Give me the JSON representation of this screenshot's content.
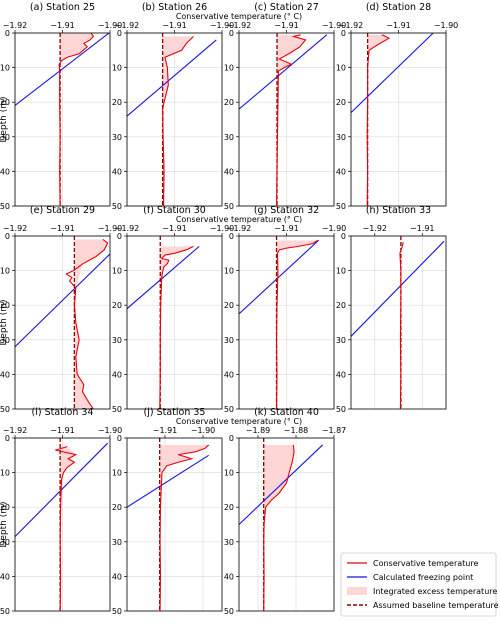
{
  "chart_data": {
    "type": "line",
    "ylabel": "Depth (m)",
    "xlabel": "Conservative temperature (° C)",
    "ylim": [
      50,
      0
    ],
    "y_ticks": [
      0,
      10,
      20,
      30,
      40,
      50
    ],
    "grid": true,
    "legend_position": "bottom-right",
    "legend": [
      {
        "label": "Conservative temperature",
        "style": "line",
        "color": "#e8000b"
      },
      {
        "label": "Calculated freezing point",
        "style": "line",
        "color": "#1414e0"
      },
      {
        "label": "Integrated excess temperature ( Δ T)",
        "style": "fill",
        "color": "#ffd6d6"
      },
      {
        "label": "Assumed baseline temperature (T_b)",
        "style": "dashed",
        "color": "#8b0000"
      }
    ],
    "colors": {
      "temperature": "#e8000b",
      "freezing": "#1414e0",
      "excess_fill": "#ffd6d6",
      "baseline": "#8b0000",
      "grid": "#dddddd"
    },
    "panels": [
      {
        "title": "(a)  Station 25",
        "xlim": [
          -1.92,
          -1.9
        ],
        "xticks": [
          -1.92,
          -1.91,
          -1.9
        ],
        "xticklabels": [
          "−1.92",
          "−1.91",
          "−1.90"
        ],
        "baseline": -1.9105,
        "freezing": [
          [
            -1.9002,
            0
          ],
          [
            -1.921,
            22
          ]
        ],
        "temperature": [
          [
            -1.904,
            0
          ],
          [
            -1.9035,
            1
          ],
          [
            -1.9042,
            2
          ],
          [
            -1.9055,
            3
          ],
          [
            -1.9048,
            4
          ],
          [
            -1.9065,
            6
          ],
          [
            -1.909,
            7
          ],
          [
            -1.9102,
            8
          ],
          [
            -1.9107,
            9
          ],
          [
            -1.9106,
            11
          ],
          [
            -1.9106,
            20
          ],
          [
            -1.9105,
            30
          ],
          [
            -1.9106,
            40
          ],
          [
            -1.9105,
            50
          ]
        ]
      },
      {
        "title": "(b)  Station 26",
        "xlim": [
          -1.92,
          -1.9
        ],
        "xticks": [
          -1.92,
          -1.91,
          -1.9
        ],
        "xticklabels": [
          "−1.92",
          "−1.91",
          "−1.90"
        ],
        "baseline": -1.9125,
        "freezing": [
          [
            -1.9012,
            2
          ],
          [
            -1.92,
            24
          ]
        ],
        "temperature": [
          [
            -1.906,
            1
          ],
          [
            -1.9075,
            3
          ],
          [
            -1.9085,
            5
          ],
          [
            -1.912,
            7
          ],
          [
            -1.9115,
            10
          ],
          [
            -1.9113,
            15
          ],
          [
            -1.9122,
            20
          ],
          [
            -1.9125,
            22
          ],
          [
            -1.9124,
            30
          ],
          [
            -1.9122,
            40
          ],
          [
            -1.9123,
            50
          ]
        ]
      },
      {
        "title": "(c)  Station 27",
        "xlim": [
          -1.92,
          -1.9
        ],
        "xticks": [
          -1.92,
          -1.91,
          -1.9
        ],
        "xticklabels": [
          "−1.92",
          "−1.91",
          "−1.90"
        ],
        "baseline": -1.912,
        "freezing": [
          [
            -1.9015,
            0.5
          ],
          [
            -1.92,
            22
          ]
        ],
        "temperature": [
          [
            -1.907,
            0.5
          ],
          [
            -1.9085,
            1
          ],
          [
            -1.906,
            2
          ],
          [
            -1.9072,
            4
          ],
          [
            -1.9095,
            6
          ],
          [
            -1.9115,
            7.5
          ],
          [
            -1.909,
            9
          ],
          [
            -1.9105,
            10
          ],
          [
            -1.9117,
            11
          ],
          [
            -1.9118,
            20
          ],
          [
            -1.9119,
            30
          ],
          [
            -1.912,
            40
          ],
          [
            -1.9121,
            50
          ]
        ]
      },
      {
        "title": "(d)  Station 28",
        "xlim": [
          -1.92,
          -1.9
        ],
        "xticks": [
          -1.92,
          -1.91,
          -1.9
        ],
        "xticklabels": [
          "−1.92",
          "−1.91",
          "−1.90"
        ],
        "baseline": -1.9165,
        "freezing": [
          [
            -1.9027,
            0
          ],
          [
            -1.92,
            23
          ]
        ],
        "temperature": [
          [
            -1.9135,
            0.5
          ],
          [
            -1.912,
            1.5
          ],
          [
            -1.9145,
            3.5
          ],
          [
            -1.9162,
            5
          ],
          [
            -1.9165,
            10
          ],
          [
            -1.9165,
            20
          ],
          [
            -1.9166,
            30
          ],
          [
            -1.9165,
            40
          ],
          [
            -1.9166,
            50
          ]
        ]
      },
      {
        "title": "(e)  Station 29",
        "xlim": [
          -1.92,
          -1.9
        ],
        "xticks": [
          -1.92,
          -1.91,
          -1.9
        ],
        "xticklabels": [
          "−1.92",
          "−1.91",
          "−1.90"
        ],
        "baseline": -1.9075,
        "freezing": [
          [
            -1.9,
            5.2
          ],
          [
            -1.92,
            32
          ]
        ],
        "temperature": [
          [
            -1.9015,
            1
          ],
          [
            -1.9005,
            2
          ],
          [
            -1.9012,
            4
          ],
          [
            -1.903,
            6
          ],
          [
            -1.9057,
            8
          ],
          [
            -1.9077,
            10
          ],
          [
            -1.9092,
            11
          ],
          [
            -1.908,
            12
          ],
          [
            -1.9085,
            13
          ],
          [
            -1.9072,
            15
          ],
          [
            -1.9075,
            20
          ],
          [
            -1.9072,
            25
          ],
          [
            -1.9065,
            30
          ],
          [
            -1.9072,
            35
          ],
          [
            -1.9069,
            40
          ],
          [
            -1.9055,
            43
          ],
          [
            -1.9058,
            45
          ],
          [
            -1.9045,
            48
          ],
          [
            -1.9035,
            50
          ]
        ]
      },
      {
        "title": "(f)  Station 30",
        "xlim": [
          -1.92,
          -1.9
        ],
        "xticks": [
          -1.92,
          -1.91,
          -1.9
        ],
        "xticklabels": [
          "−1.92",
          "−1.91",
          "−1.90"
        ],
        "baseline": -1.913,
        "freezing": [
          [
            -1.9048,
            3
          ],
          [
            -1.92,
            21
          ]
        ],
        "temperature": [
          [
            -1.906,
            3
          ],
          [
            -1.9075,
            4
          ],
          [
            -1.91,
            5
          ],
          [
            -1.912,
            5.5
          ],
          [
            -1.9127,
            6.5
          ],
          [
            -1.9112,
            7
          ],
          [
            -1.9115,
            8
          ],
          [
            -1.9123,
            9
          ],
          [
            -1.9127,
            12
          ],
          [
            -1.9129,
            20
          ],
          [
            -1.913,
            30
          ],
          [
            -1.913,
            40
          ],
          [
            -1.9131,
            50
          ]
        ]
      },
      {
        "title": "(g)  Station 32",
        "xlim": [
          -1.92,
          -1.9
        ],
        "xticks": [
          -1.92,
          -1.91,
          -1.9
        ],
        "xticklabels": [
          "−1.92",
          "−1.91",
          "−1.90"
        ],
        "baseline": -1.9121,
        "freezing": [
          [
            -1.9032,
            1.2
          ],
          [
            -1.92,
            22.5
          ]
        ],
        "temperature": [
          [
            -1.9035,
            1.3
          ],
          [
            -1.9045,
            2.2
          ],
          [
            -1.9075,
            3
          ],
          [
            -1.91,
            3.5
          ],
          [
            -1.9115,
            4
          ],
          [
            -1.9119,
            5
          ],
          [
            -1.9118,
            10
          ],
          [
            -1.912,
            20
          ],
          [
            -1.9121,
            30
          ],
          [
            -1.912,
            40
          ],
          [
            -1.9121,
            50
          ]
        ]
      },
      {
        "title": "(h)  Station 33",
        "xlim": [
          -1.925,
          -1.905
        ],
        "xticks": [
          -1.92,
          -1.91
        ],
        "xticklabels": [
          "−1.92",
          "−1.91"
        ],
        "baseline": -1.9145,
        "freezing": [
          [
            -1.9054,
            1.5
          ],
          [
            -1.925,
            29
          ]
        ],
        "temperature": [
          [
            -1.914,
            1.8
          ],
          [
            -1.9142,
            3
          ],
          [
            -1.9147,
            5
          ],
          [
            -1.9145,
            10
          ],
          [
            -1.9145,
            20
          ],
          [
            -1.9146,
            30
          ],
          [
            -1.9145,
            40
          ],
          [
            -1.9146,
            50
          ]
        ]
      },
      {
        "title": "(i)  Station 34",
        "xlim": [
          -1.92,
          -1.9
        ],
        "xticks": [
          -1.92,
          -1.91,
          -1.9
        ],
        "xticklabels": [
          "−1.92",
          "−1.91",
          "−1.90"
        ],
        "baseline": -1.9105,
        "freezing": [
          [
            -1.9005,
            1.5
          ],
          [
            -1.92,
            28.5
          ]
        ],
        "temperature": [
          [
            -1.909,
            2.5
          ],
          [
            -1.9115,
            3.5
          ],
          [
            -1.9072,
            4.8
          ],
          [
            -1.9088,
            6
          ],
          [
            -1.9075,
            7
          ],
          [
            -1.909,
            8.5
          ],
          [
            -1.9098,
            10
          ],
          [
            -1.9102,
            12
          ],
          [
            -1.9104,
            20
          ],
          [
            -1.9105,
            30
          ],
          [
            -1.9104,
            40
          ],
          [
            -1.9105,
            50
          ]
        ]
      },
      {
        "title": "(j)  Station 35",
        "xlim": [
          -1.92,
          -1.895
        ],
        "xticks": [
          -1.91,
          -1.9
        ],
        "xticklabels": [
          "−1.91",
          "−1.90"
        ],
        "baseline": -1.9114,
        "freezing": [
          [
            -1.8985,
            5
          ],
          [
            -1.92,
            20
          ]
        ],
        "temperature": [
          [
            -1.8985,
            2
          ],
          [
            -1.8995,
            3
          ],
          [
            -1.902,
            4
          ],
          [
            -1.9065,
            4.8
          ],
          [
            -1.903,
            6
          ],
          [
            -1.9065,
            7
          ],
          [
            -1.9095,
            8
          ],
          [
            -1.9108,
            10
          ],
          [
            -1.911,
            15
          ],
          [
            -1.9112,
            20
          ],
          [
            -1.9113,
            30
          ],
          [
            -1.9112,
            40
          ],
          [
            -1.9113,
            50
          ]
        ]
      },
      {
        "title": "(k)  Station 40",
        "xlim": [
          -1.895,
          -1.87
        ],
        "xticks": [
          -1.89,
          -1.88,
          -1.87
        ],
        "xticklabels": [
          "−1.89",
          "−1.88",
          "−1.87"
        ],
        "baseline": -1.8885,
        "freezing": [
          [
            -1.873,
            2
          ],
          [
            -1.895,
            25
          ]
        ],
        "temperature": [
          [
            -1.8807,
            2
          ],
          [
            -1.8805,
            4
          ],
          [
            -1.881,
            7
          ],
          [
            -1.8818,
            10
          ],
          [
            -1.8825,
            13
          ],
          [
            -1.8845,
            16
          ],
          [
            -1.8865,
            18
          ],
          [
            -1.888,
            20
          ],
          [
            -1.8884,
            25
          ],
          [
            -1.8885,
            30
          ],
          [
            -1.8884,
            40
          ],
          [
            -1.8885,
            50
          ]
        ]
      }
    ]
  }
}
